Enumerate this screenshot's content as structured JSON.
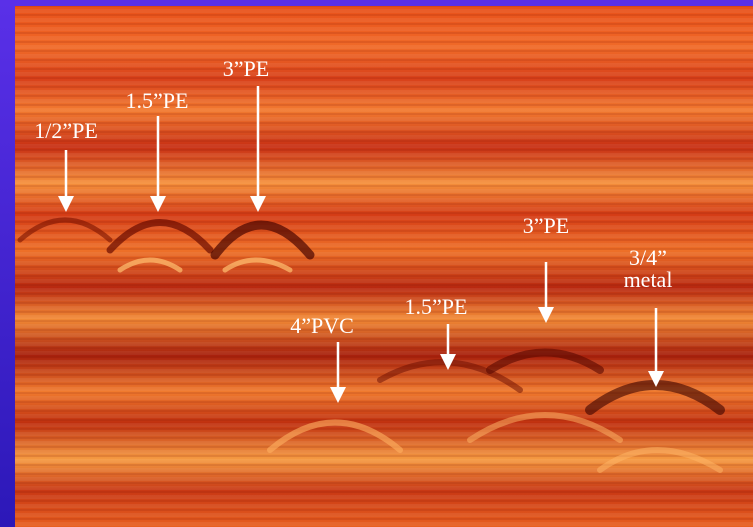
{
  "annotations": [
    {
      "lines": [
        "1/2”PE"
      ]
    },
    {
      "lines": [
        "1.5”PE"
      ]
    },
    {
      "lines": [
        "3”PE"
      ]
    },
    {
      "lines": [
        "4”PVC"
      ]
    },
    {
      "lines": [
        "1.5”PE"
      ]
    },
    {
      "lines": [
        "3”PE"
      ]
    },
    {
      "lines": [
        "3/4”",
        "metal"
      ]
    }
  ]
}
